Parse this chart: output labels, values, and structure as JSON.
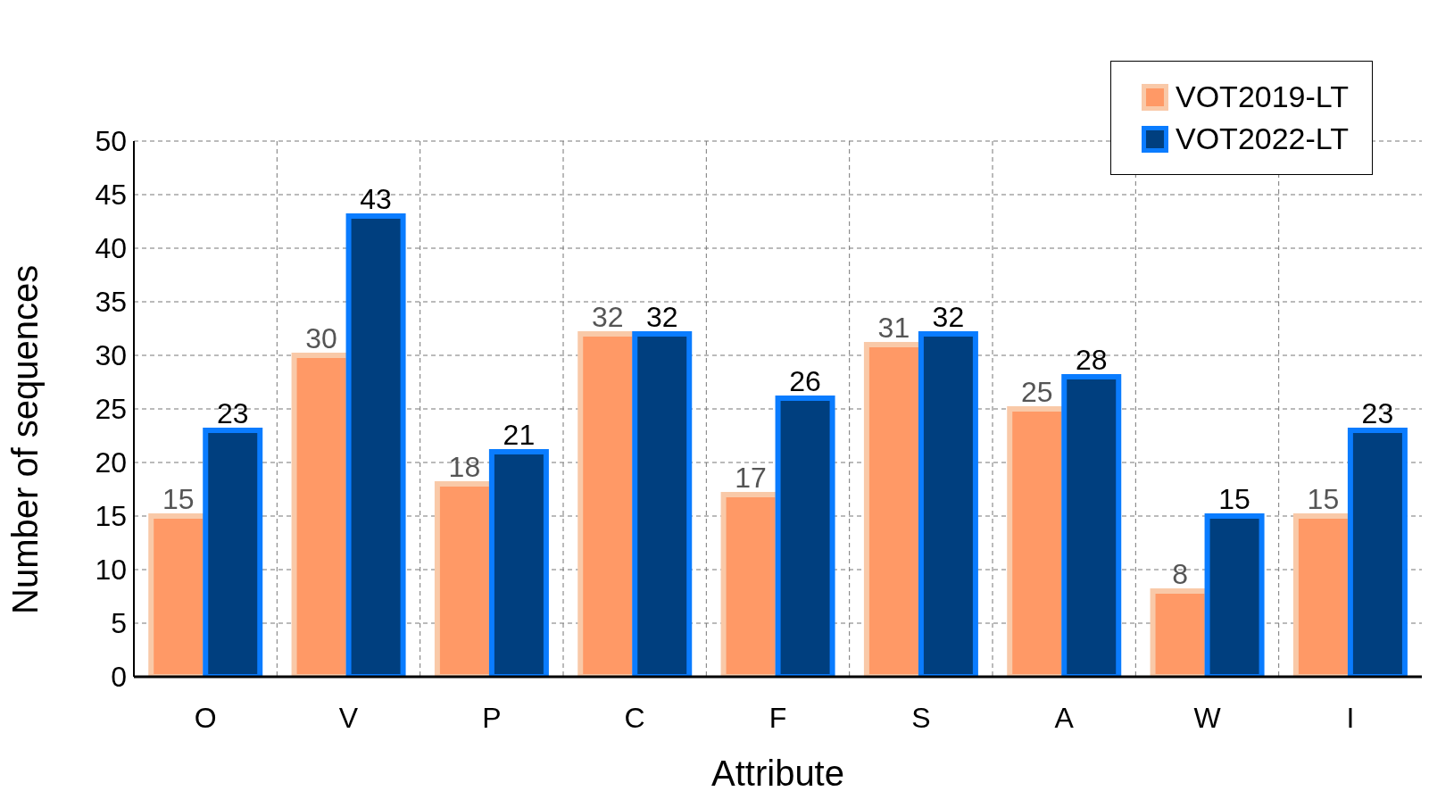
{
  "chart_data": {
    "type": "bar",
    "xlabel": "Attribute",
    "ylabel": "Number of sequences",
    "categories": [
      "O",
      "V",
      "P",
      "C",
      "F",
      "S",
      "A",
      "W",
      "I"
    ],
    "series": [
      {
        "name": "VOT2019-LT",
        "color": "#ff9966",
        "values": [
          15,
          30,
          18,
          32,
          17,
          31,
          25,
          8,
          15
        ]
      },
      {
        "name": "VOT2022-LT",
        "color": "#003f7f",
        "values": [
          23,
          43,
          21,
          32,
          26,
          32,
          28,
          15,
          23
        ]
      }
    ],
    "ylim": [
      0,
      50
    ],
    "yticks": [
      0,
      5,
      10,
      15,
      20,
      25,
      30,
      35,
      40,
      45,
      50
    ],
    "grid": true,
    "legend": "top right",
    "data_labels": true
  }
}
